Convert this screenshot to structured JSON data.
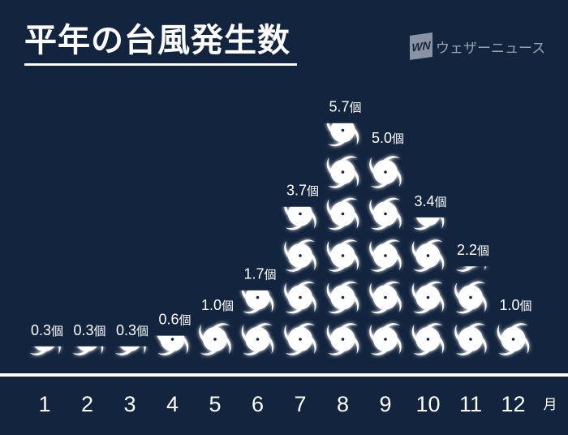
{
  "title": "平年の台風発生数",
  "logo": {
    "mark": "WN",
    "text": "ウェザーニュース"
  },
  "chart_data": {
    "type": "pictogram",
    "title": "平年の台風発生数",
    "icon": "typhoon-icon",
    "unit": "個",
    "x_unit": "月",
    "categories": [
      "1",
      "2",
      "3",
      "4",
      "5",
      "6",
      "7",
      "8",
      "9",
      "10",
      "11",
      "12"
    ],
    "values": [
      0.3,
      0.3,
      0.3,
      0.6,
      1.0,
      1.7,
      3.7,
      5.7,
      5.0,
      3.4,
      2.2,
      1.0
    ],
    "data_labels": [
      "0.3",
      "0.3",
      "0.3",
      "0.6",
      "1.0",
      "1.7",
      "3.7",
      "5.7",
      "5.0",
      "3.4",
      "2.2",
      "1.0"
    ],
    "colors": {
      "background": "#13243f",
      "icon": "#ffffff",
      "axis": "#ffffff"
    }
  }
}
